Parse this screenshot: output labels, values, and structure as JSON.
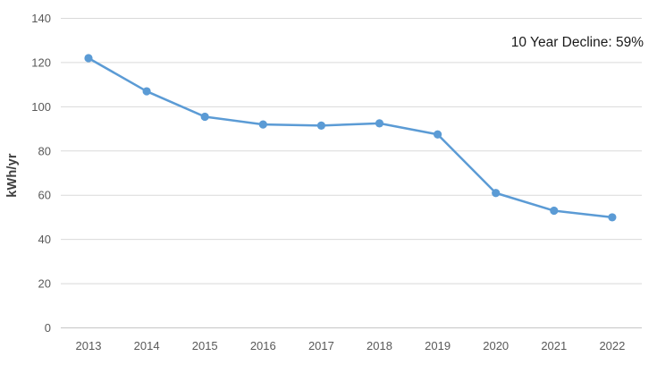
{
  "chart_data": {
    "type": "line",
    "title": "",
    "categories": [
      "2013",
      "2014",
      "2015",
      "2016",
      "2017",
      "2018",
      "2019",
      "2020",
      "2021",
      "2022"
    ],
    "series": [
      {
        "name": "kWh/yr",
        "values": [
          122,
          107,
          95.5,
          92,
          91.5,
          92.5,
          87.5,
          61,
          53,
          50
        ]
      }
    ],
    "xlabel": "",
    "ylabel": "kWh/yr",
    "ylim": [
      0,
      140
    ],
    "yticks": [
      0,
      20,
      40,
      60,
      80,
      100,
      120,
      140
    ],
    "grid": "horizontal",
    "legend": "none",
    "annotation": "10 Year Decline: 59%",
    "colors": {
      "line": "#5B9BD5",
      "marker": "#5B9BD5",
      "gridline": "#D9D9D9",
      "axis_line": "#C6C6C6",
      "tick_label": "#595959",
      "axis_title": "#3F3F3F",
      "annotation_text": "#1A1A1A",
      "background": "#FFFFFF"
    },
    "marker_style": "circle"
  }
}
